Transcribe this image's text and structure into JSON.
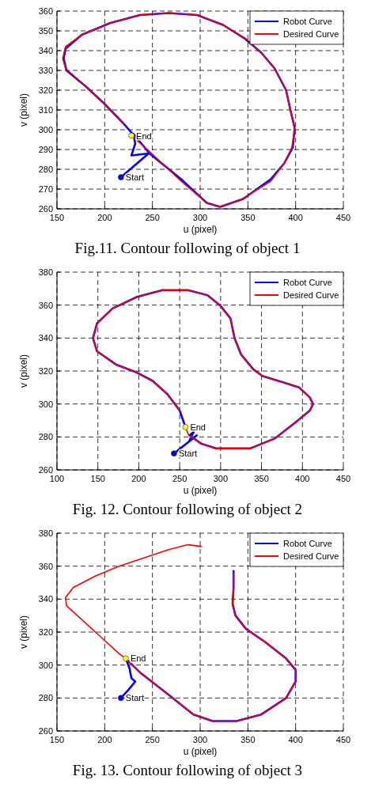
{
  "chart_data": [
    {
      "type": "line",
      "title": "Fig.11. Contour following of object 1",
      "xlabel": "u (pixel)",
      "ylabel": "v (pixel)",
      "xlim": [
        150,
        450
      ],
      "ylim": [
        260,
        360
      ],
      "xticks": [
        150,
        200,
        250,
        300,
        350,
        400,
        450
      ],
      "yticks": [
        260,
        270,
        280,
        290,
        300,
        310,
        320,
        330,
        340,
        350,
        360
      ],
      "grid": true,
      "legend": "top right",
      "annotations": [
        {
          "text": "Start",
          "x": 217,
          "y": 276
        },
        {
          "text": "End",
          "x": 228,
          "y": 297
        }
      ],
      "series": [
        {
          "name": "Robot Curve",
          "color": "#0000ff",
          "x": [
            217,
            246,
            228,
            232,
            230,
            247,
            280,
            307,
            321,
            345,
            374,
            388,
            397,
            399,
            395,
            390,
            378,
            364,
            347,
            324,
            297,
            267,
            237,
            206,
            176,
            159,
            157,
            160,
            180,
            200,
            220,
            229
          ],
          "values": [
            276,
            288,
            287,
            293,
            298,
            288,
            275,
            263,
            261,
            265,
            275,
            283,
            291,
            301,
            309,
            320,
            331,
            339,
            346,
            353,
            358,
            359,
            358,
            354,
            348,
            341,
            336,
            330,
            322,
            313,
            303,
            298
          ]
        },
        {
          "name": "Desired Curve",
          "color": "#ff0000",
          "x": [
            228,
            247,
            280,
            307,
            321,
            344,
            374,
            388,
            396,
            399,
            395,
            390,
            378,
            364,
            348,
            324,
            297,
            267,
            237,
            206,
            176,
            159,
            156,
            159,
            180,
            200,
            220
          ],
          "values": [
            297,
            289,
            274,
            263,
            261,
            265,
            274,
            283,
            291,
            300,
            309,
            320,
            331,
            339,
            346,
            353,
            358,
            359,
            358,
            354,
            348,
            342,
            336,
            331,
            322,
            313,
            303
          ]
        },
        {
          "type": "scatter",
          "color": "#0000ff",
          "x": [
            217
          ],
          "values": [
            276
          ]
        },
        {
          "type": "scatter",
          "color": "#ffff00",
          "x": [
            228
          ],
          "values": [
            297
          ]
        }
      ]
    },
    {
      "type": "line",
      "title": "Fig. 12. Contour following of object 2",
      "xlabel": "u (pixel)",
      "ylabel": "v (pixel)",
      "xlim": [
        100,
        450
      ],
      "ylim": [
        260,
        380
      ],
      "xticks": [
        100,
        150,
        200,
        250,
        300,
        350,
        400,
        450
      ],
      "yticks": [
        260,
        280,
        300,
        320,
        340,
        360,
        380
      ],
      "grid": true,
      "legend": "top right",
      "annotations": [
        {
          "text": "Start",
          "x": 243,
          "y": 270
        },
        {
          "text": "End",
          "x": 257,
          "y": 286
        }
      ],
      "series": [
        {
          "name": "Robot Curve",
          "color": "#0000ff",
          "x": [
            243,
            271,
            262,
            267,
            262,
            276,
            295,
            336,
            366,
            392,
            409,
            413,
            409,
            396,
            377,
            351,
            340,
            325,
            317,
            312,
            299,
            284,
            261,
            228,
            198,
            168,
            149,
            144,
            149,
            172,
            198,
            217,
            235,
            250,
            257
          ],
          "values": [
            270,
            281,
            278,
            283,
            281,
            276,
            273,
            273,
            279,
            289,
            296,
            300,
            304,
            310,
            313,
            317,
            321,
            330,
            340,
            352,
            360,
            366,
            369,
            369,
            365,
            358,
            349,
            340,
            332,
            324,
            319,
            314,
            306,
            296,
            286
          ]
        },
        {
          "name": "Desired Curve",
          "color": "#ff0000",
          "x": [
            257,
            261,
            276,
            295,
            336,
            366,
            392,
            409,
            413,
            409,
            396,
            377,
            351,
            340,
            325,
            317,
            312,
            299,
            284,
            261,
            228,
            198,
            168,
            149,
            144,
            149,
            172,
            198,
            217,
            235,
            250
          ],
          "values": [
            286,
            281,
            276,
            273,
            273,
            279,
            289,
            296,
            300,
            304,
            310,
            313,
            317,
            321,
            330,
            340,
            352,
            360,
            366,
            369,
            369,
            365,
            358,
            349,
            340,
            332,
            324,
            319,
            314,
            306,
            296
          ]
        },
        {
          "type": "scatter",
          "color": "#0000ff",
          "x": [
            243
          ],
          "values": [
            270
          ]
        },
        {
          "type": "scatter",
          "color": "#ffff00",
          "x": [
            257
          ],
          "values": [
            286
          ]
        }
      ]
    },
    {
      "type": "line",
      "title": "Fig. 13. Contour following of object 3",
      "xlabel": "u (pixel)",
      "ylabel": "v (pixel)",
      "xlim": [
        150,
        450
      ],
      "ylim": [
        260,
        380
      ],
      "xticks": [
        150,
        200,
        250,
        300,
        350,
        400,
        450
      ],
      "yticks": [
        260,
        280,
        300,
        320,
        340,
        360,
        380
      ],
      "grid": true,
      "legend": "top right",
      "annotations": [
        {
          "text": "Start",
          "x": 217,
          "y": 280
        },
        {
          "text": "End",
          "x": 222,
          "y": 304
        }
      ],
      "series": [
        {
          "name": "Robot Curve",
          "color": "#0000ff",
          "x": [
            217,
            225,
            232,
            228,
            226,
            222,
            238,
            267,
            293,
            313,
            338,
            364,
            390,
            400,
            400,
            390,
            368,
            348,
            337,
            334,
            335,
            335
          ],
          "values": [
            280,
            285,
            290,
            292,
            298,
            304,
            295,
            282,
            270,
            266,
            266,
            270,
            280,
            290,
            297,
            304,
            314,
            322,
            330,
            337,
            347,
            357
          ]
        },
        {
          "name": "Desired Curve",
          "color": "#ff0000",
          "x": [
            301,
            287,
            267,
            241,
            215,
            190,
            167,
            159,
            160,
            177,
            196,
            215,
            222,
            238,
            267,
            293,
            313,
            338,
            364,
            390,
            400,
            400,
            390,
            368,
            348,
            337,
            334,
            335,
            335
          ],
          "values": [
            372,
            373,
            370,
            365,
            360,
            354,
            347,
            341,
            336,
            327,
            317,
            307,
            304,
            295,
            282,
            270,
            266,
            266,
            270,
            280,
            290,
            297,
            304,
            314,
            322,
            330,
            337,
            347,
            356
          ]
        },
        {
          "type": "scatter",
          "color": "#0000ff",
          "x": [
            217
          ],
          "values": [
            280
          ]
        },
        {
          "type": "scatter",
          "color": "#ffff00",
          "x": [
            222
          ],
          "values": [
            304
          ]
        }
      ]
    }
  ]
}
